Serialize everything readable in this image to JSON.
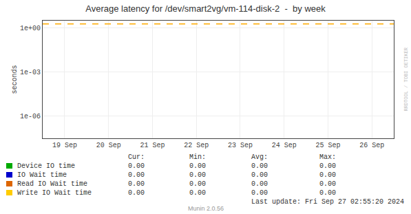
{
  "chart_data": {
    "type": "line",
    "title": "Average latency for /dev/smart2vg/vm-114-disk-2  -  by week",
    "ylabel": "seconds",
    "categories": [
      "19 Sep",
      "20 Sep",
      "21 Sep",
      "22 Sep",
      "23 Sep",
      "24 Sep",
      "25 Sep",
      "26 Sep"
    ],
    "series": [
      {
        "name": "Device IO time",
        "color": "#00aa00",
        "values": [
          null,
          null,
          null,
          null,
          null,
          null,
          null,
          null
        ]
      },
      {
        "name": "IO Wait time",
        "color": "#0000cc",
        "values": [
          null,
          null,
          null,
          null,
          null,
          null,
          null,
          null
        ]
      },
      {
        "name": "Read IO Wait time",
        "color": "#dd6600",
        "values": [
          null,
          null,
          null,
          null,
          null,
          null,
          null,
          null
        ]
      },
      {
        "name": "Write IO Wait time",
        "color": "#ffcc00",
        "values": [
          null,
          null,
          null,
          null,
          null,
          null,
          null,
          null
        ]
      }
    ],
    "log": "y",
    "ylim": [
      3e-08,
      3.0
    ],
    "yticks": [
      {
        "value": 1e-06,
        "label": "1e-06"
      },
      {
        "value": 0.001,
        "label": "1e-03"
      },
      {
        "value": 1,
        "label": "1e+00"
      }
    ],
    "grid": true,
    "reference_line": {
      "y": 1.8,
      "color": "#ffaa00",
      "line_style": "dashed"
    },
    "table": {
      "headers": [
        "Cur:",
        "Min:",
        "Avg:",
        "Max:"
      ],
      "rows": [
        [
          "0.00",
          "0.00",
          "0.00",
          "0.00"
        ],
        [
          "0.00",
          "0.00",
          "0.00",
          "0.00"
        ],
        [
          "0.00",
          "0.00",
          "0.00",
          "0.00"
        ],
        [
          "0.00",
          "0.00",
          "0.00",
          "0.00"
        ]
      ]
    },
    "annotations": [
      "Last update: Fri Sep 27 02:55:20 2024",
      "Munin 2.0.56",
      "RRDTOOL / TOBI OETIKER"
    ]
  }
}
